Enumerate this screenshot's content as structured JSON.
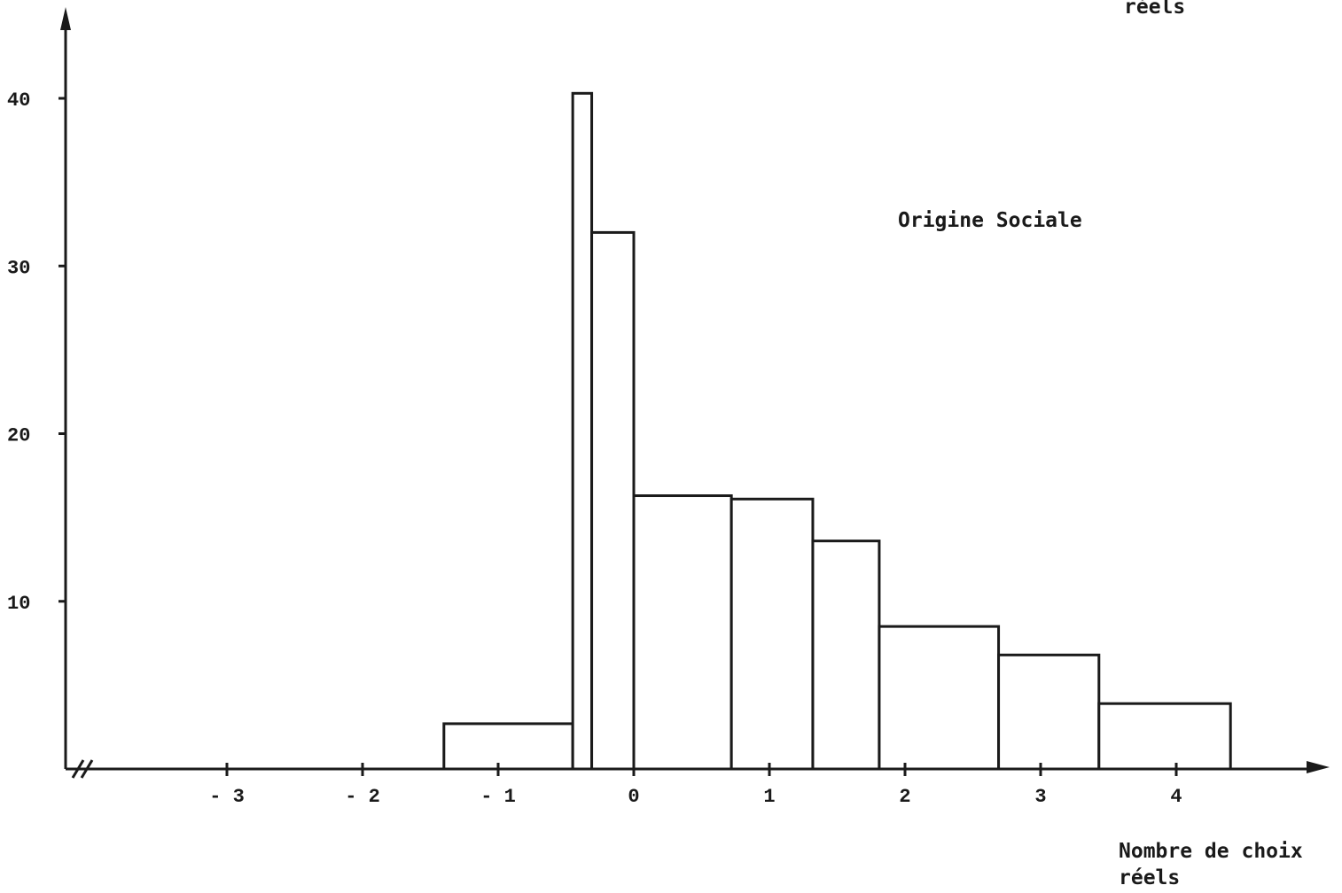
{
  "chart_data": {
    "type": "bar",
    "title": "Origine Sociale",
    "xlabel": [
      "Nombre de choix",
      "réels"
    ],
    "top_caption": "réels",
    "y_ticks": [
      10,
      20,
      30,
      40
    ],
    "x_ticks": [
      "- 3",
      "- 2",
      "- 1",
      "0",
      "1",
      "2",
      "3",
      "4"
    ],
    "x_tick_values": [
      -3,
      -2,
      -1,
      0,
      1,
      2,
      3,
      4
    ],
    "bins": [
      {
        "x0": -1.4,
        "x1": -0.45,
        "value": 2.7
      },
      {
        "x0": -0.45,
        "x1": -0.31,
        "value": 40.3
      },
      {
        "x0": -0.31,
        "x1": 0.0,
        "value": 32.0
      },
      {
        "x0": 0.0,
        "x1": 0.72,
        "value": 16.3
      },
      {
        "x0": 0.72,
        "x1": 1.32,
        "value": 16.1
      },
      {
        "x0": 1.32,
        "x1": 1.81,
        "value": 13.6
      },
      {
        "x0": 1.81,
        "x1": 2.69,
        "value": 8.5
      },
      {
        "x0": 2.69,
        "x1": 3.43,
        "value": 6.8
      },
      {
        "x0": 3.43,
        "x1": 4.4,
        "value": 3.9
      }
    ],
    "xlim": [
      -4.2,
      5.2
    ],
    "ylim": [
      0,
      45
    ],
    "axis_break": true,
    "grid": false
  }
}
